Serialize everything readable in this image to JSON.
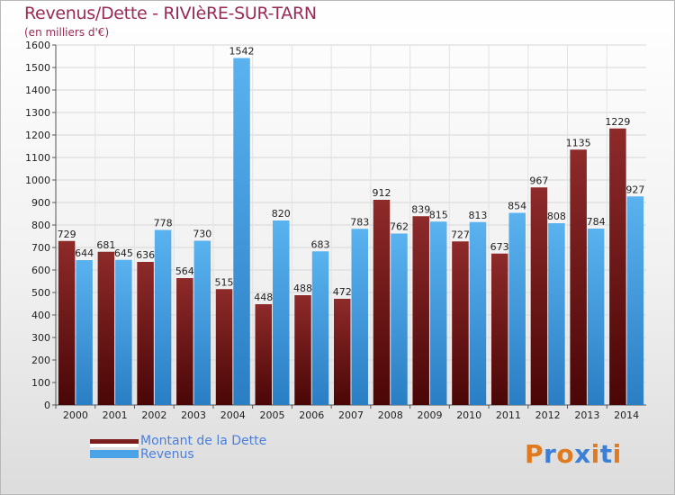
{
  "header": {
    "title": "Revenus/Dette - RIVIèRE-SUR-TARN",
    "subtitle": "(en milliers d'€)"
  },
  "chart_data": {
    "type": "bar",
    "title": "Revenus/Dette - RIVIèRE-SUR-TARN",
    "subtitle": "(en milliers d'€)",
    "categories": [
      "2000",
      "2001",
      "2002",
      "2003",
      "2004",
      "2005",
      "2006",
      "2007",
      "2008",
      "2009",
      "2010",
      "2011",
      "2012",
      "2013",
      "2014"
    ],
    "series": [
      {
        "name": "Montant de la Dette",
        "color": "#7a1e1e",
        "values": [
          729,
          681,
          636,
          564,
          515,
          448,
          488,
          472,
          912,
          839,
          727,
          673,
          967,
          1135,
          1229
        ]
      },
      {
        "name": "Revenus",
        "color": "#4aa3e6",
        "values": [
          644,
          645,
          778,
          730,
          1542,
          820,
          683,
          783,
          762,
          815,
          813,
          854,
          808,
          784,
          927
        ]
      }
    ],
    "ylim": [
      0,
      1600
    ],
    "yticks": [
      0,
      100,
      200,
      300,
      400,
      500,
      600,
      700,
      800,
      900,
      1000,
      1100,
      1200,
      1300,
      1400,
      1500,
      1600
    ],
    "grid": true,
    "legend_position": "bottom-left"
  },
  "legend": {
    "items": [
      {
        "label": "Montant de la Dette",
        "color": "#7a1e1e"
      },
      {
        "label": "Revenus",
        "color": "#4aa3e6"
      }
    ]
  },
  "brand": {
    "text": "Proxiti",
    "letter_colors": [
      "#e07a1f",
      "#3d7fd4",
      "#e07a1f",
      "#3d7fd4",
      "#e07a1f",
      "#3d7fd4",
      "#e07a1f"
    ]
  }
}
